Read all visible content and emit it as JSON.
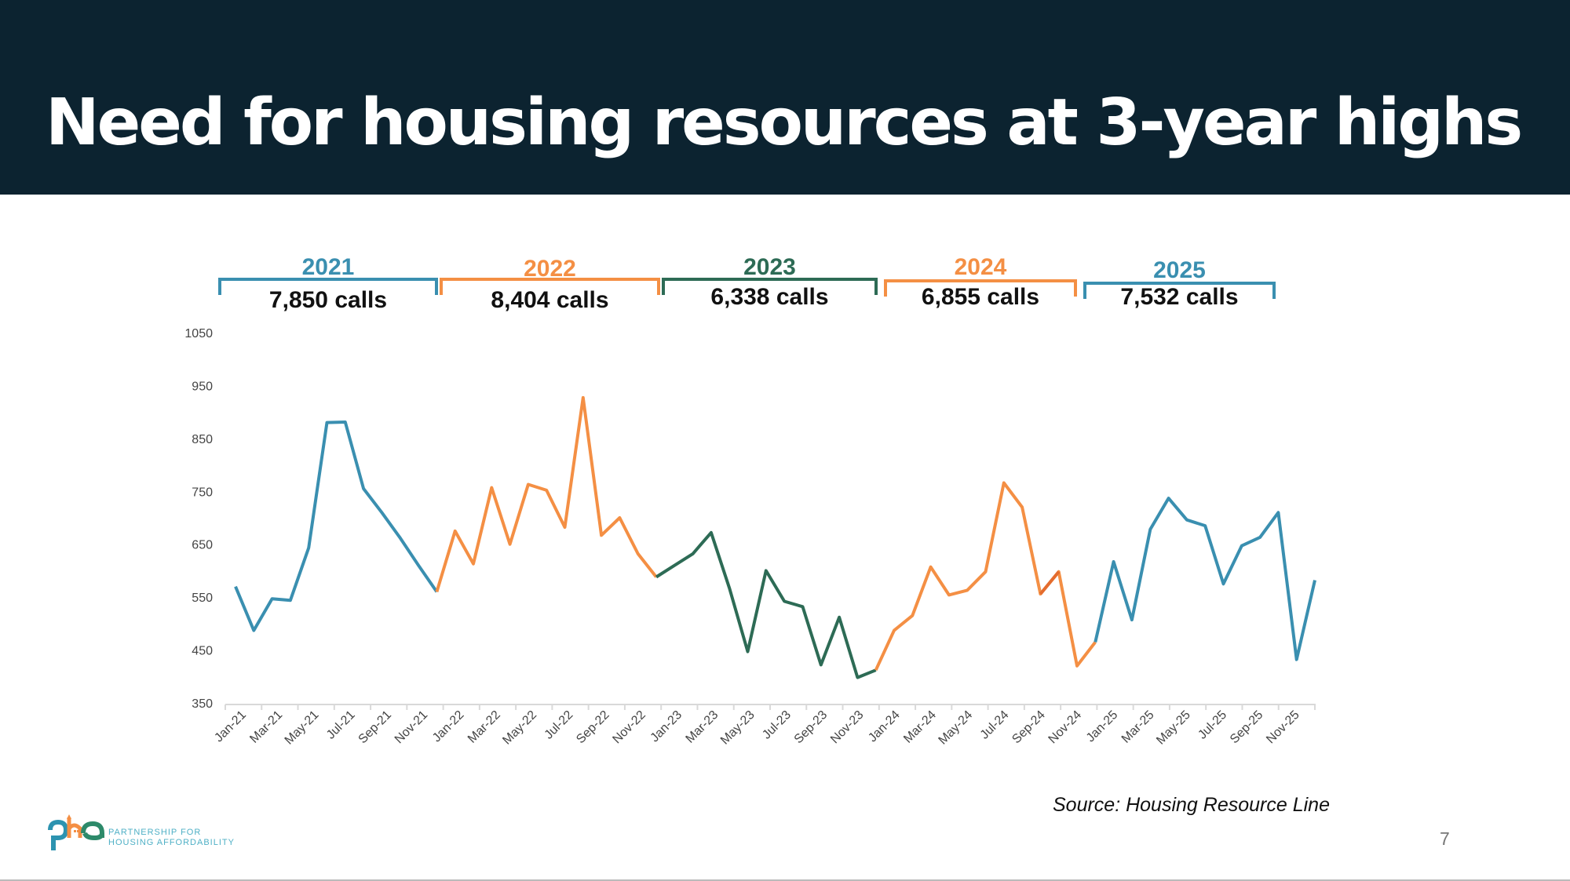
{
  "header": {
    "title": "Need for housing resources at 3-year highs"
  },
  "colors": {
    "header_bg": "#0c2330",
    "blue": "#3a8fb0",
    "orange": "#f48f44",
    "green": "#2d6b55",
    "dark_orange": "#e46c2e"
  },
  "year_groups": [
    {
      "year": "2021",
      "calls": "7,850 calls",
      "color": "#3a8fb0"
    },
    {
      "year": "2022",
      "calls": "8,404 calls",
      "color": "#f48f44"
    },
    {
      "year": "2023",
      "calls": "6,338 calls",
      "color": "#2d6b55"
    },
    {
      "year": "2024",
      "calls": "6,855 calls",
      "color": "#f48f44"
    },
    {
      "year": "2025",
      "calls": "7,532 calls",
      "color": "#3a8fb0"
    }
  ],
  "chart_data": {
    "type": "line",
    "title": "",
    "xlabel": "",
    "ylabel": "",
    "ylim": [
      350,
      1050
    ],
    "yticks": [
      350,
      450,
      550,
      650,
      750,
      850,
      950,
      1050
    ],
    "grid": false,
    "x": [
      "Jan-21",
      "Feb-21",
      "Mar-21",
      "Apr-21",
      "May-21",
      "Jun-21",
      "Jul-21",
      "Aug-21",
      "Sep-21",
      "Oct-21",
      "Nov-21",
      "Dec-21",
      "Jan-22",
      "Feb-22",
      "Mar-22",
      "Apr-22",
      "May-22",
      "Jun-22",
      "Jul-22",
      "Aug-22",
      "Sep-22",
      "Oct-22",
      "Nov-22",
      "Dec-22",
      "Jan-23",
      "Feb-23",
      "Mar-23",
      "Apr-23",
      "May-23",
      "Jun-23",
      "Jul-23",
      "Aug-23",
      "Sep-23",
      "Oct-23",
      "Nov-23",
      "Dec-23",
      "Jan-24",
      "Feb-24",
      "Mar-24",
      "Apr-24",
      "May-24",
      "Jun-24",
      "Jul-24",
      "Aug-24",
      "Sep-24",
      "Oct-24",
      "Nov-24",
      "Dec-24",
      "Jan-25",
      "Feb-25",
      "Mar-25",
      "Apr-25",
      "May-25",
      "Jun-25",
      "Jul-25",
      "Aug-25",
      "Sep-25",
      "Oct-25",
      "Nov-25",
      "Dec-25"
    ],
    "xtick_labels": [
      "Jan-21",
      "Mar-21",
      "May-21",
      "Jul-21",
      "Sep-21",
      "Nov-21",
      "Jan-22",
      "Mar-22",
      "May-22",
      "Jul-22",
      "Sep-22",
      "Nov-22",
      "Jan-23",
      "Mar-23",
      "May-23",
      "Jul-23",
      "Sep-23",
      "Nov-23",
      "Jan-24",
      "Mar-24",
      "May-24",
      "Jul-24",
      "Sep-24",
      "Nov-24",
      "Jan-25",
      "Mar-25",
      "May-25",
      "Jul-25",
      "Sep-25",
      "Nov-25"
    ],
    "values": [
      570,
      487,
      547,
      544,
      643,
      880,
      881,
      755,
      710,
      662,
      610,
      560,
      675,
      613,
      757,
      650,
      763,
      752,
      682,
      927,
      667,
      700,
      632,
      588,
      610,
      632,
      672,
      567,
      447,
      600,
      542,
      532,
      422,
      512,
      398,
      412,
      487,
      515,
      607,
      554,
      563,
      598,
      766,
      720,
      556,
      598,
      420,
      465,
      617,
      507,
      678,
      737,
      696,
      685,
      575,
      647,
      663,
      710,
      432,
      582
    ],
    "segments": [
      {
        "year": "2021",
        "from": 0,
        "to": 11,
        "color": "#3a8fb0"
      },
      {
        "year": "2022",
        "from": 11,
        "to": 23,
        "color": "#f48f44"
      },
      {
        "year": "2023",
        "from": 23,
        "to": 35,
        "color": "#2d6b55"
      },
      {
        "year": "2024",
        "from": 35,
        "to": 47,
        "color": "#f48f44"
      },
      {
        "year": "2025",
        "from": 47,
        "to": 59,
        "color": "#3a8fb0"
      }
    ]
  },
  "footer": {
    "source": "Source: Housing Resource Line",
    "page_number": "7",
    "logo_mark": "pha",
    "logo_line1": "PARTNERSHIP FOR",
    "logo_line2": "HOUSING AFFORDABILITY"
  }
}
